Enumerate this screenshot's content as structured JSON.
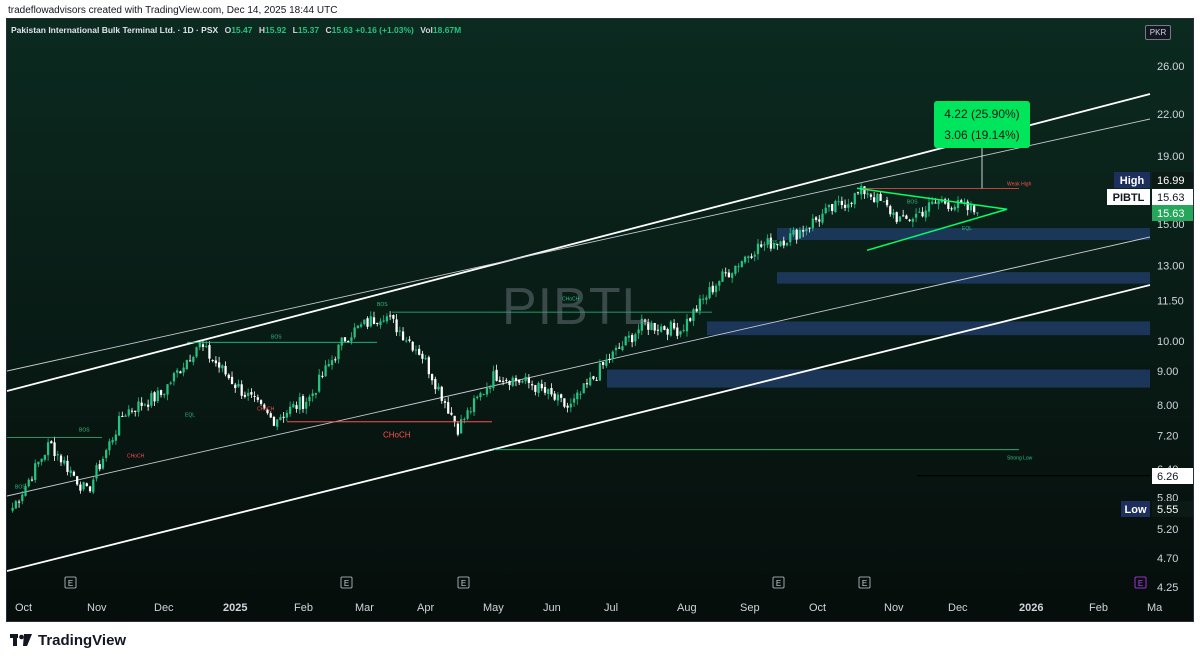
{
  "caption": "tradeflowadvisors created with TradingView.com, Dec 14, 2025 18:44 UTC",
  "header": {
    "symbol_name": "Pakistan International Bulk Terminal Ltd. · 1D · PSX",
    "open_label": "O",
    "open": "15.47",
    "high_label": "H",
    "high": "15.92",
    "low_label": "L",
    "low": "15.37",
    "close_label": "C",
    "close": "15.63",
    "change": "+0.16 (+1.03%)",
    "volume_label": "Vol",
    "volume": "18.67M",
    "currency": "PKR"
  },
  "watermark": "PIBTL",
  "footer_brand": "TradingView",
  "colors": {
    "background": "#0a1f1a",
    "up": "#26c281",
    "down": "#ffffff",
    "accent_green": "#00ff66",
    "zone": "#1e3a5f",
    "label_high": "#1e2f5e"
  },
  "chart_data": {
    "type": "candlestick",
    "y_scale": "log",
    "y_ticks": [
      "26.00",
      "22.00",
      "19.00",
      "15.00",
      "13.00",
      "11.50",
      "10.00",
      "9.00",
      "8.00",
      "7.20",
      "6.40",
      "5.80",
      "5.20",
      "4.70",
      "4.25"
    ],
    "x_ticks": [
      "Oct",
      "Nov",
      "Dec",
      "2025",
      "Feb",
      "Mar",
      "Apr",
      "May",
      "Jun",
      "Jul",
      "Aug",
      "Sep",
      "Oct",
      "Nov",
      "Dec",
      "2026",
      "Feb",
      "Ma"
    ],
    "price_labels": [
      {
        "name": "High",
        "value": "16.99"
      },
      {
        "name": "PIBTL",
        "value": "15.63"
      },
      {
        "name": "",
        "value": "15.63"
      },
      {
        "name": "",
        "value": "6.26"
      },
      {
        "name": "Low",
        "value": "5.55"
      }
    ],
    "projection": {
      "line1": "4.22 (25.90%)",
      "line2": "3.06 (19.14%)"
    },
    "annotations": [
      "BOS",
      "CHoCH",
      "EQL",
      "Weak High",
      "Strong Low"
    ],
    "monthly_path": [
      {
        "m": "Oct",
        "price": 5.6
      },
      {
        "m": "Oct",
        "price": 7.0
      },
      {
        "m": "Nov",
        "price": 5.9
      },
      {
        "m": "Nov",
        "price": 7.8
      },
      {
        "m": "Dec",
        "price": 8.3
      },
      {
        "m": "Dec",
        "price": 9.9
      },
      {
        "m": "2025",
        "price": 8.6
      },
      {
        "m": "Feb",
        "price": 7.6
      },
      {
        "m": "Mar",
        "price": 8.2
      },
      {
        "m": "Mar",
        "price": 10.2
      },
      {
        "m": "Apr",
        "price": 11.0
      },
      {
        "m": "Apr",
        "price": 9.6
      },
      {
        "m": "May",
        "price": 7.4
      },
      {
        "m": "May",
        "price": 8.9
      },
      {
        "m": "Jun",
        "price": 8.6
      },
      {
        "m": "Jun",
        "price": 7.9
      },
      {
        "m": "Jul",
        "price": 9.3
      },
      {
        "m": "Jul",
        "price": 10.6
      },
      {
        "m": "Aug",
        "price": 10.4
      },
      {
        "m": "Aug",
        "price": 12.3
      },
      {
        "m": "Sep",
        "price": 13.8
      },
      {
        "m": "Sep",
        "price": 14.4
      },
      {
        "m": "Oct",
        "price": 15.7
      },
      {
        "m": "Oct",
        "price": 16.9
      },
      {
        "m": "Nov",
        "price": 15.1
      },
      {
        "m": "Nov",
        "price": 16.3
      },
      {
        "m": "Dec",
        "price": 15.63
      }
    ]
  }
}
